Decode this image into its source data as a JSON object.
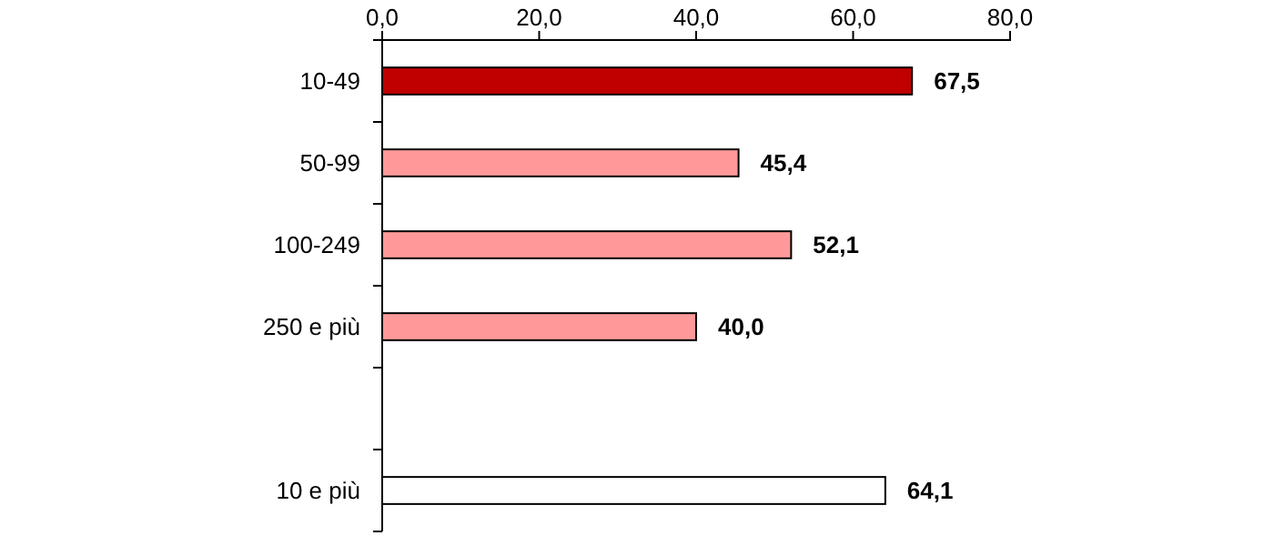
{
  "chart_data": {
    "type": "bar",
    "orientation": "horizontal",
    "categories": [
      "10-49",
      "50-99",
      "100-249",
      "250 e più",
      null,
      "10 e più"
    ],
    "values": [
      67.5,
      45.4,
      52.1,
      40.0,
      null,
      64.1
    ],
    "colors": [
      "#c00000",
      "#ff9999",
      "#ff9999",
      "#ff9999",
      null,
      "#ffffff"
    ],
    "value_labels": [
      "67,5",
      "45,4",
      "52,1",
      "40,0",
      null,
      "64,1"
    ],
    "xlim": [
      0,
      80
    ],
    "xticks": [
      {
        "value": 0,
        "label": "0,0"
      },
      {
        "value": 20,
        "label": "20,0"
      },
      {
        "value": 40,
        "label": "40,0"
      },
      {
        "value": 60,
        "label": "60,0"
      },
      {
        "value": 80,
        "label": "80,0"
      }
    ]
  }
}
